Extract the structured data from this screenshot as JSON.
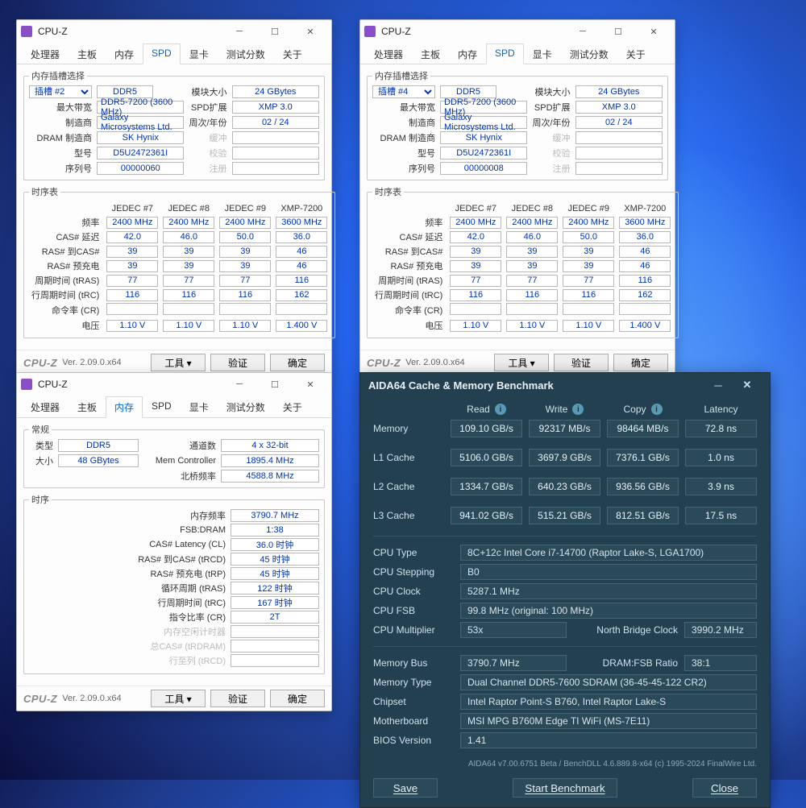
{
  "cpuz": {
    "title": "CPU-Z",
    "tabs": [
      "处理器",
      "主板",
      "内存",
      "SPD",
      "显卡",
      "测试分数",
      "关于"
    ],
    "spd_tab_index": 3,
    "mem_tab_index": 2,
    "version": "Ver. 2.09.0.x64",
    "buttons": {
      "tools": "工具",
      "validate": "验证",
      "ok": "确定"
    },
    "spd": {
      "slot_select_legend": "内存插槽选择",
      "labels": {
        "type": "DDR5",
        "max_bw": "最大带宽",
        "max_bw_val": "DDR5-7200 (3600 MHz)",
        "mfr": "制造商",
        "mfr_val": "Galaxy Microsystems Ltd.",
        "dram_mfr": "DRAM 制造商",
        "dram_mfr_val": "SK Hynix",
        "part": "型号",
        "part_val": "D5U2472361I",
        "serial": "序列号",
        "module_size": "模块大小",
        "module_size_val": "24 GBytes",
        "spd_ext": "SPD扩展",
        "spd_ext_val": "XMP 3.0",
        "week_year": "周次/年份",
        "week_year_val": "02 / 24",
        "round": "缓冲",
        "check": "校验",
        "reg": "注册"
      },
      "timing_legend": "时序表",
      "timing_cols": [
        "JEDEC #7",
        "JEDEC #8",
        "JEDEC #9",
        "XMP-7200"
      ],
      "timing_rows": [
        {
          "l": "频率",
          "v": [
            "2400 MHz",
            "2400 MHz",
            "2400 MHz",
            "3600 MHz"
          ]
        },
        {
          "l": "CAS# 延迟",
          "v": [
            "42.0",
            "46.0",
            "50.0",
            "36.0"
          ]
        },
        {
          "l": "RAS# 到CAS#",
          "v": [
            "39",
            "39",
            "39",
            "46"
          ]
        },
        {
          "l": "RAS# 预充电",
          "v": [
            "39",
            "39",
            "39",
            "46"
          ]
        },
        {
          "l": "周期时间 (tRAS)",
          "v": [
            "77",
            "77",
            "77",
            "116"
          ]
        },
        {
          "l": "行周期时间 (tRC)",
          "v": [
            "116",
            "116",
            "116",
            "162"
          ]
        },
        {
          "l": "命令率 (CR)",
          "v": [
            "",
            "",
            "",
            ""
          ]
        },
        {
          "l": "电压",
          "v": [
            "1.10 V",
            "1.10 V",
            "1.10 V",
            "1.400 V"
          ]
        }
      ]
    },
    "win1": {
      "slot": "插槽 #2",
      "serial": "00000060"
    },
    "win2": {
      "slot": "插槽 #4",
      "serial": "00000008"
    },
    "mem": {
      "general_legend": "常规",
      "type_lbl": "类型",
      "type_val": "DDR5",
      "size_lbl": "大小",
      "size_val": "48 GBytes",
      "chan_lbl": "通道数",
      "chan_val": "4 x 32-bit",
      "mc_lbl": "Mem Controller",
      "mc_val": "1895.4 MHz",
      "nb_lbl": "北桥频率",
      "nb_val": "4588.8 MHz",
      "timing_legend": "时序",
      "rows": [
        {
          "l": "内存频率",
          "v": "3790.7 MHz"
        },
        {
          "l": "FSB:DRAM",
          "v": "1:38"
        },
        {
          "l": "CAS# Latency (CL)",
          "v": "36.0 时钟"
        },
        {
          "l": "RAS# 到CAS# (tRCD)",
          "v": "45 时钟"
        },
        {
          "l": "RAS# 预充电 (tRP)",
          "v": "45 时钟"
        },
        {
          "l": "循环周期 (tRAS)",
          "v": "122 时钟"
        },
        {
          "l": "行周期时间 (tRC)",
          "v": "167 时钟"
        },
        {
          "l": "指令比率 (CR)",
          "v": "2T"
        },
        {
          "l": "内存空闲计时器",
          "v": ""
        },
        {
          "l": "总CAS# (tRDRAM)",
          "v": ""
        },
        {
          "l": "行至列 (tRCD)",
          "v": ""
        }
      ]
    }
  },
  "aida": {
    "title": "AIDA64 Cache & Memory Benchmark",
    "headers": [
      "Read",
      "Write",
      "Copy",
      "Latency"
    ],
    "rows": [
      {
        "l": "Memory",
        "v": [
          "109.10 GB/s",
          "92317 MB/s",
          "98464 MB/s",
          "72.8 ns"
        ]
      },
      {
        "l": "L1 Cache",
        "v": [
          "5106.0 GB/s",
          "3697.9 GB/s",
          "7376.1 GB/s",
          "1.0 ns"
        ]
      },
      {
        "l": "L2 Cache",
        "v": [
          "1334.7 GB/s",
          "640.23 GB/s",
          "936.56 GB/s",
          "3.9 ns"
        ]
      },
      {
        "l": "L3 Cache",
        "v": [
          "941.02 GB/s",
          "515.21 GB/s",
          "812.51 GB/s",
          "17.5 ns"
        ]
      }
    ],
    "info": [
      {
        "l": "CPU Type",
        "v": "8C+12c Intel Core i7-14700 (Raptor Lake-S, LGA1700)"
      },
      {
        "l": "CPU Stepping",
        "v": "B0"
      },
      {
        "l": "CPU Clock",
        "v": "5287.1 MHz"
      },
      {
        "l": "CPU FSB",
        "v": "99.8 MHz  (original: 100 MHz)"
      }
    ],
    "mult": {
      "l": "CPU Multiplier",
      "v": "53x",
      "l2": "North Bridge Clock",
      "v2": "3990.2 MHz"
    },
    "info2": [
      {
        "l": "Memory Bus",
        "v": "3790.7 MHz",
        "l2": "DRAM:FSB Ratio",
        "v2": "38:1"
      }
    ],
    "info3": [
      {
        "l": "Memory Type",
        "v": "Dual Channel DDR5-7600 SDRAM  (36-45-45-122 CR2)"
      },
      {
        "l": "Chipset",
        "v": "Intel Raptor Point-S B760, Intel Raptor Lake-S"
      },
      {
        "l": "Motherboard",
        "v": "MSI MPG B760M Edge TI WiFi (MS-7E11)"
      },
      {
        "l": "BIOS Version",
        "v": "1.41"
      }
    ],
    "copyright": "AIDA64 v7.00.6751 Beta / BenchDLL 4.6.889.8-x64  (c) 1995-2024 FinalWire Ltd.",
    "buttons": {
      "save": "Save",
      "start": "Start Benchmark",
      "close": "Close"
    }
  }
}
